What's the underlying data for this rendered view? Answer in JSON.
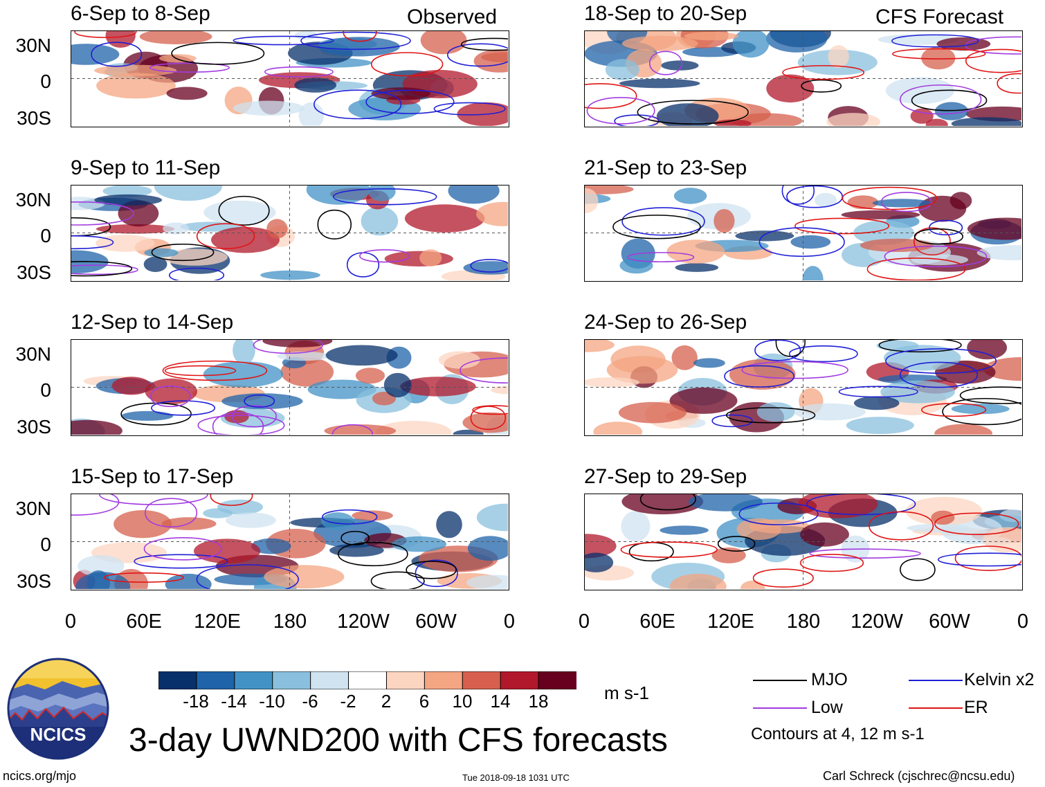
{
  "panels_left": [
    {
      "title": "6-Sep to 8-Sep",
      "tag": "Observed"
    },
    {
      "title": "9-Sep to 11-Sep",
      "tag": ""
    },
    {
      "title": "12-Sep to 14-Sep",
      "tag": ""
    },
    {
      "title": "15-Sep to 17-Sep",
      "tag": ""
    }
  ],
  "panels_right": [
    {
      "title": "18-Sep to 20-Sep",
      "tag": "CFS Forecast"
    },
    {
      "title": "21-Sep to 23-Sep",
      "tag": ""
    },
    {
      "title": "24-Sep to 26-Sep",
      "tag": ""
    },
    {
      "title": "27-Sep to 29-Sep",
      "tag": ""
    }
  ],
  "lat_labels": [
    "30N",
    "0",
    "30S"
  ],
  "lon_labels": [
    "0",
    "60E",
    "120E",
    "180",
    "120W",
    "60W",
    "0"
  ],
  "colorbar": {
    "labels": [
      "-18",
      "-14",
      "-10",
      "-6",
      "-2",
      "2",
      "6",
      "10",
      "14",
      "18"
    ],
    "colors": [
      "#08306b",
      "#1f63a8",
      "#4292c6",
      "#8ac0de",
      "#cfe3f0",
      "#ffffff",
      "#fcd5c1",
      "#f4a582",
      "#d6604d",
      "#b2182b",
      "#67001f"
    ],
    "units": "m s-1"
  },
  "legend": {
    "mjo": {
      "label": "MJO",
      "color": "#000000"
    },
    "kelvin": {
      "label": "Kelvin x2",
      "color": "#1f1fd6"
    },
    "low": {
      "label": "Low",
      "color": "#a23be0"
    },
    "er": {
      "label": "ER",
      "color": "#e01414"
    },
    "note": "Contours at 4, 12 m s-1"
  },
  "logo": {
    "text": "NCICS"
  },
  "main_title": "3-day UWND200 with CFS forecasts",
  "footer": {
    "left": "ncics.org/mjo",
    "center": "Tue 2018-09-18 1031 UTC",
    "right": "Carl Schreck (cjschrec@ncsu.edu)"
  }
}
